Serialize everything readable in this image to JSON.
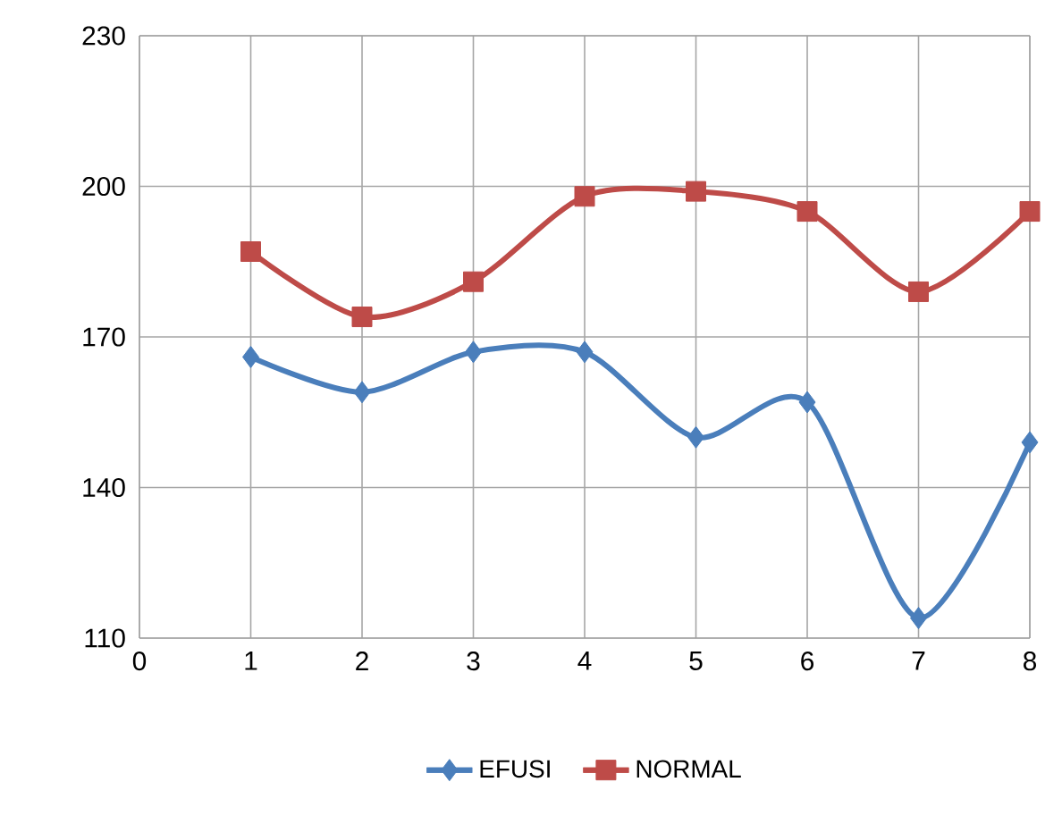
{
  "chart_data": {
    "type": "line",
    "x": [
      1,
      2,
      3,
      4,
      5,
      6,
      7,
      8
    ],
    "series": [
      {
        "name": "EFUSI",
        "color": "#4a7ebb",
        "marker": "diamond",
        "values": [
          166,
          159,
          167,
          167,
          150,
          157,
          114,
          149
        ]
      },
      {
        "name": "NORMAL",
        "color": "#be4b48",
        "marker": "square",
        "values": [
          187,
          174,
          181,
          198,
          199,
          195,
          179,
          195
        ]
      }
    ],
    "xlim": [
      0,
      8
    ],
    "xticks": [
      0,
      1,
      2,
      3,
      4,
      5,
      6,
      7,
      8
    ],
    "ylim": [
      110,
      230
    ],
    "yticks": [
      110,
      140,
      170,
      200,
      230
    ],
    "grid": true,
    "legend": "bottom",
    "line_style": "solid"
  }
}
